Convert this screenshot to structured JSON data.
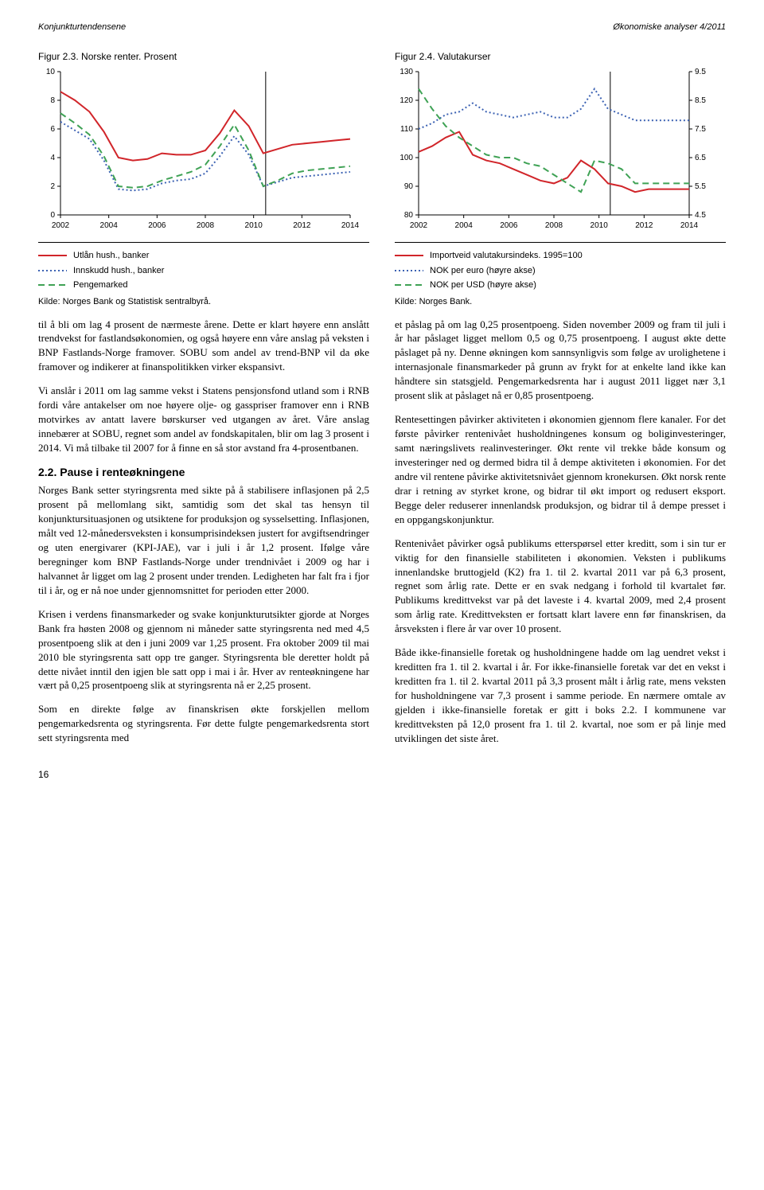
{
  "running": {
    "left": "Konjunkturtendensene",
    "right": "Økonomiske analyser 4/2011"
  },
  "figA": {
    "title": "Figur 2.3. Norske renter. Prosent",
    "ylim": [
      0,
      10
    ],
    "ytick_step": 2,
    "xcats": [
      "2002",
      "2004",
      "2006",
      "2008",
      "2010",
      "2012",
      "2014"
    ],
    "vline_at": 4.25,
    "colors": {
      "line1": "#d1252a",
      "line2": "#3c62b3",
      "line3": "#3fa255",
      "grid": "#000000",
      "bg": "#ffffff",
      "axis": "#000000"
    },
    "series": {
      "utlan": [
        8.6,
        8.0,
        7.2,
        5.8,
        4.0,
        3.8,
        3.9,
        4.3,
        4.2,
        4.2,
        4.5,
        5.7,
        7.3,
        6.2,
        4.3,
        4.6,
        4.9,
        5.0,
        5.1,
        5.2,
        5.3
      ],
      "innskudd": [
        6.5,
        5.9,
        5.3,
        3.8,
        1.8,
        1.7,
        1.8,
        2.2,
        2.4,
        2.5,
        2.9,
        4.1,
        5.5,
        4.2,
        2.0,
        2.3,
        2.6,
        2.7,
        2.8,
        2.9,
        3.0
      ],
      "penge": [
        7.1,
        6.4,
        5.6,
        4.1,
        2.0,
        1.9,
        2.0,
        2.4,
        2.7,
        3.0,
        3.5,
        4.8,
        6.3,
        4.5,
        2.0,
        2.4,
        2.9,
        3.1,
        3.2,
        3.3,
        3.4
      ]
    },
    "legend": [
      {
        "label": "Utlån hush., banker",
        "color": "#d1252a",
        "dash": "solid"
      },
      {
        "label": "Innskudd hush., banker",
        "color": "#3c62b3",
        "dash": "dotted"
      },
      {
        "label": "Pengemarked",
        "color": "#3fa255",
        "dash": "dashed"
      }
    ],
    "source": "Kilde: Norges Bank og Statistisk sentralbyrå."
  },
  "figB": {
    "title": "Figur 2.4. Valutakurser",
    "ylimL": [
      80,
      130
    ],
    "ytick_stepL": 10,
    "ylimR": [
      4.5,
      9.5
    ],
    "ytick_stepR": 1.0,
    "xcats": [
      "2002",
      "2004",
      "2006",
      "2008",
      "2010",
      "2012",
      "2014"
    ],
    "vline_at": 4.25,
    "colors": {
      "line1": "#d1252a",
      "line2": "#3c62b3",
      "line3": "#3fa255",
      "grid": "#000000",
      "bg": "#ffffff",
      "axis": "#000000"
    },
    "series": {
      "imp": [
        102,
        104,
        107,
        109,
        101,
        99,
        98,
        96,
        94,
        92,
        91,
        93,
        99,
        96,
        91,
        90,
        88,
        89,
        89,
        89,
        89
      ],
      "eurR": [
        7.5,
        7.7,
        8.0,
        8.1,
        8.4,
        8.1,
        8.0,
        7.9,
        8.0,
        8.1,
        7.9,
        7.9,
        8.2,
        8.9,
        8.2,
        8.0,
        7.8,
        7.8,
        7.8,
        7.8,
        7.8
      ],
      "usdR": [
        8.9,
        8.2,
        7.6,
        7.2,
        6.9,
        6.6,
        6.5,
        6.5,
        6.3,
        6.2,
        5.9,
        5.6,
        5.3,
        6.4,
        6.3,
        6.1,
        5.6,
        5.6,
        5.6,
        5.6,
        5.6
      ]
    },
    "legend": [
      {
        "label": "Importveid valutakursindeks. 1995=100",
        "color": "#d1252a",
        "dash": "solid"
      },
      {
        "label": "NOK per euro (høyre akse)",
        "color": "#3c62b3",
        "dash": "dotted"
      },
      {
        "label": "NOK per USD (høyre akse)",
        "color": "#3fa255",
        "dash": "dashed"
      }
    ],
    "source": "Kilde: Norges Bank."
  },
  "body": {
    "p1": "til å bli om lag 4 prosent de nærmeste årene. Dette er klart høyere enn anslått trendvekst for fastlandsøkonomien, og også høyere enn våre anslag på veksten i BNP Fastlands-Norge framover. SOBU som andel av trend-BNP vil da øke framover og indikerer at finanspolitikken virker ekspansivt.",
    "p2": "Vi anslår i 2011 om lag samme vekst i Statens pensjonsfond utland som i RNB fordi våre antakelser om noe høyere olje- og gasspriser framover enn i RNB motvirkes av antatt lavere børskurser ved utgangen av året. Våre anslag innebærer at SOBU, regnet som andel av fondskapitalen, blir om lag 3 prosent i 2014. Vi må tilbake til 2007 for å finne en så stor avstand fra 4-prosentbanen.",
    "h1": "2.2.  Pause i renteøkningene",
    "p3": "Norges Bank setter styringsrenta med sikte på å stabilisere inflasjonen på 2,5 prosent på mellomlang sikt, samtidig som det skal tas hensyn til konjunktursituasjonen og utsiktene for produksjon og sysselsetting. Inflasjonen, målt ved 12-månedersveksten i konsumprisindeksen justert for avgiftsendringer og uten energivarer (KPI-JAE), var i juli i år 1,2 prosent. Ifølge våre beregninger kom BNP Fastlands-Norge under trendnivået i 2009 og har i halvannet år ligget om lag 2 prosent under trenden. Ledigheten har falt fra i fjor til i år, og er nå noe under gjennomsnittet for perioden etter 2000.",
    "p4": "Krisen i verdens finansmarkeder og svake konjunkturutsikter gjorde at Norges Bank fra høsten 2008 og gjennom ni måneder satte styringsrenta ned med 4,5 prosentpoeng slik at den i juni 2009 var 1,25 prosent. Fra oktober 2009 til mai 2010 ble styringsrenta satt opp tre ganger. Styringsrenta ble deretter holdt på dette nivået inntil den igjen ble satt opp i mai i år. Hver av renteøkningene har vært på 0,25 prosentpoeng slik at styringsrenta nå er 2,25 prosent.",
    "p5": "Som en direkte følge av finanskrisen økte forskjellen mellom pengemarkedsrenta og styringsrenta. Før dette fulgte pengemarkedsrenta stort sett styringsrenta med",
    "p6": "et påslag på om lag 0,25 prosentpoeng. Siden november 2009 og fram til juli i år har påslaget ligget mellom 0,5 og 0,75 prosentpoeng. I august økte dette påslaget på ny. Denne økningen kom sannsynligvis som følge av urolighetene i internasjonale finansmarkeder på grunn av frykt for at enkelte land ikke kan håndtere sin statsgjeld. Pengemarkedsrenta har i august 2011 ligget nær 3,1 prosent slik at påslaget nå er 0,85 prosentpoeng.",
    "p7": "Rentesettingen påvirker aktiviteten i økonomien gjennom flere kanaler. For det første påvirker rentenivået husholdningenes konsum og boliginvesteringer, samt næringslivets realinvesteringer. Økt rente vil trekke både konsum og investeringer ned og dermed bidra til å dempe aktiviteten i økonomien. For det andre vil rentene påvirke aktivitetsnivået gjennom kronekursen. Økt norsk rente drar i retning av styrket krone, og bidrar til økt import og redusert eksport. Begge deler reduserer innenlandsk produksjon, og bidrar til å dempe presset i en oppgangskonjunktur.",
    "p8": "Rentenivået påvirker også publikums etterspørsel etter kreditt, som i sin tur er viktig for den finansielle stabiliteten i økonomien. Veksten i publikums innenlandske bruttogjeld (K2) fra 1. til 2. kvartal 2011 var på 6,3 prosent, regnet som årlig rate. Dette er en svak nedgang i forhold til kvartalet før. Publikums kredittvekst var på det laveste i 4. kvartal 2009, med 2,4 prosent som årlig rate. Kredittveksten er fortsatt klart lavere enn før finanskrisen, da årsveksten i flere år var over 10 prosent.",
    "p9": "Både ikke-finansielle foretak og husholdningene hadde om lag uendret vekst i kreditten fra 1. til 2. kvartal i år. For ikke-finansielle foretak var det en vekst i kreditten fra 1. til 2. kvartal 2011 på 3,3 prosent målt i årlig rate, mens veksten for husholdningene var 7,3 prosent i samme periode. En nærmere omtale av gjelden i ikke-finansielle foretak er gitt i boks 2.2. I kommunene var kredittveksten på 12,0 prosent fra 1. til 2. kvartal, noe som er på linje med utviklingen det siste året."
  },
  "page_num": "16"
}
